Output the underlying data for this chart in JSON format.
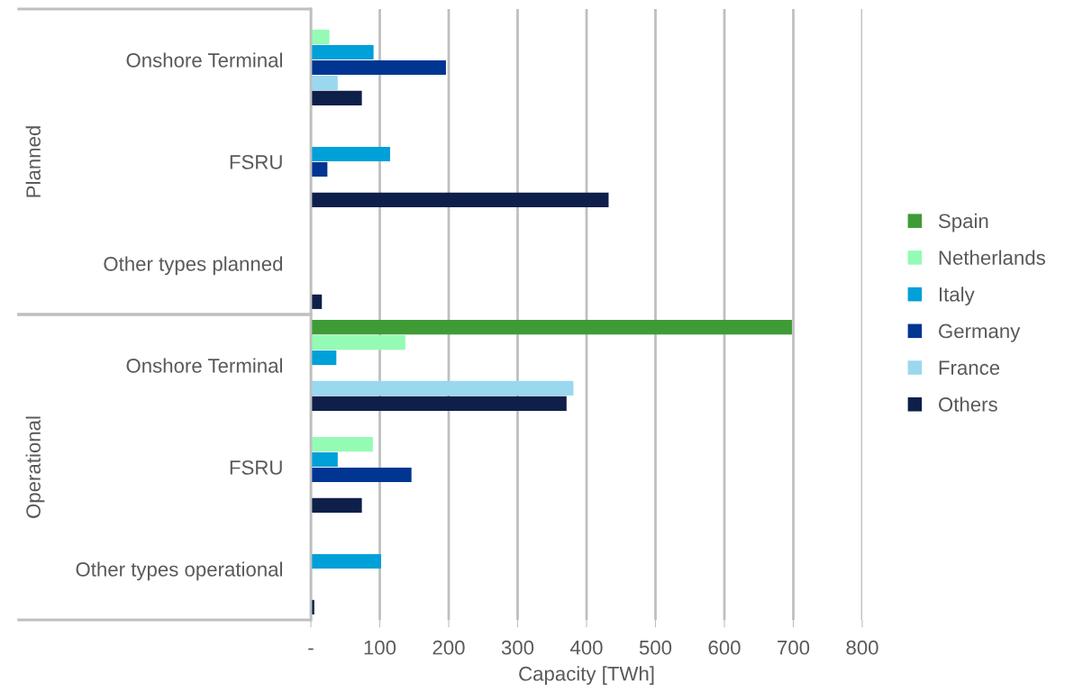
{
  "chart_data": {
    "type": "bar",
    "orientation": "horizontal",
    "xlabel": "Capacity [TWh]",
    "categories": [
      "Onshore Terminal",
      "FSRU",
      "Other types planned",
      "Onshore Terminal",
      "FSRU",
      "Other types operational"
    ],
    "series": [
      {
        "name": "Spain",
        "color": "#3f9b35",
        "values": [
          null,
          null,
          null,
          698,
          null,
          null
        ]
      },
      {
        "name": "Netherlands",
        "color": "#94fbb4",
        "values": [
          27,
          null,
          null,
          137,
          90,
          null
        ]
      },
      {
        "name": "Italy",
        "color": "#00a0d8",
        "values": [
          91,
          115,
          null,
          37,
          39,
          102
        ]
      },
      {
        "name": "Germany",
        "color": "#003591",
        "values": [
          196,
          24,
          null,
          null,
          146,
          null
        ]
      },
      {
        "name": "France",
        "color": "#9ad8f0",
        "values": [
          39,
          null,
          null,
          381,
          null,
          null
        ]
      },
      {
        "name": "Others",
        "color": "#0e1f4a",
        "values": [
          74,
          432,
          16,
          371,
          74,
          5
        ]
      }
    ],
    "xlim": [
      0,
      800
    ],
    "xticks": [
      {
        "value": 0,
        "label": "-"
      },
      100,
      200,
      300,
      400,
      500,
      600,
      700,
      800
    ],
    "annotations": [
      "Planned",
      "Operational"
    ],
    "grid": "x",
    "legend": "right"
  }
}
